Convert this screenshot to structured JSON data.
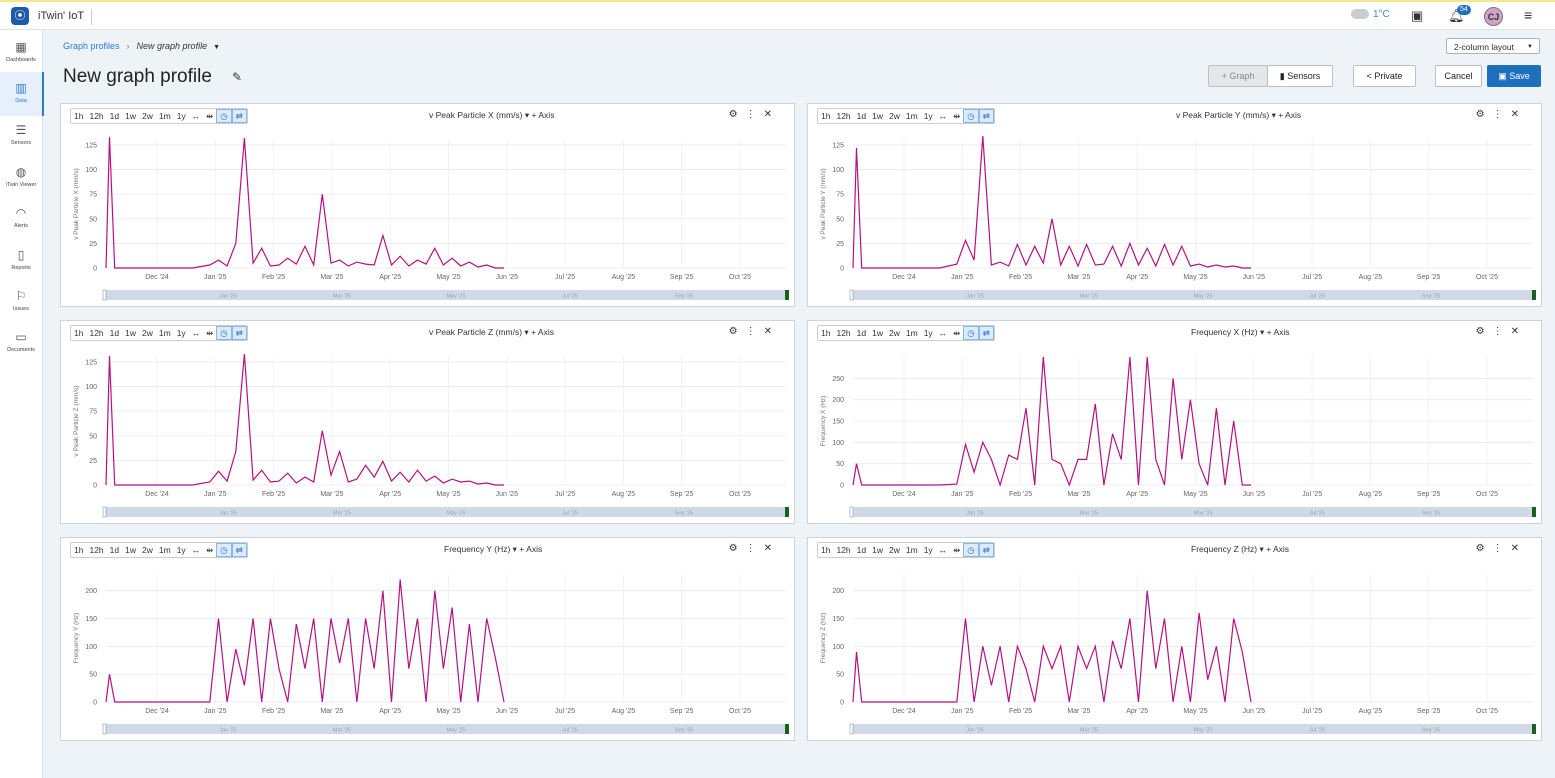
{
  "app": {
    "name": "iTwin' IoT",
    "weather": "1°C",
    "notifications": "54",
    "user_initials": "CJ"
  },
  "sidebar": {
    "items": [
      {
        "label": "Dashboards",
        "icon": "dashboard-icon",
        "active": false
      },
      {
        "label": "Data",
        "icon": "data-chart-icon",
        "active": true
      },
      {
        "label": "Sensors",
        "icon": "sliders-icon",
        "active": false
      },
      {
        "label": "iTwin Viewer",
        "icon": "globe-icon",
        "active": false
      },
      {
        "label": "Alerts",
        "icon": "bell-icon",
        "active": false
      },
      {
        "label": "Reports",
        "icon": "report-icon",
        "active": false
      },
      {
        "label": "Issues",
        "icon": "flag-icon",
        "active": false
      },
      {
        "label": "Documents",
        "icon": "folder-icon",
        "active": false
      }
    ]
  },
  "breadcrumb": {
    "parent": "Graph profiles",
    "current": "New graph profile"
  },
  "page": {
    "title": "New graph profile"
  },
  "layout_select": "2-column layout",
  "toolbar": {
    "graph": "Graph",
    "sensors": "Sensors",
    "private": "Private",
    "cancel": "Cancel",
    "save": "Save"
  },
  "time_buttons": [
    "1h",
    "12h",
    "1d",
    "1w",
    "2w",
    "1m",
    "1y",
    "↔",
    "⇹"
  ],
  "add_axis": "+ Axis",
  "accent_color": "#b5127f",
  "x_axis": {
    "ticks": [
      "Dec '24",
      "Jan '25",
      "Feb '25",
      "Mar '25",
      "Apr '25",
      "May '25",
      "Jun '25",
      "Jul '25",
      "Aug '25",
      "Sep '25",
      "Oct '25"
    ]
  },
  "navigator": {
    "ticks": [
      "Jan '25",
      "Mar '25",
      "May '25",
      "Jul '25",
      "Sep '25"
    ]
  },
  "chart_data": [
    {
      "type": "line",
      "title": "v Peak Particle X (mm/s)",
      "ylabel": "v Peak Particle X (mm/s)",
      "ylim": [
        0,
        130
      ],
      "yticks": [
        0,
        25,
        50,
        75,
        100,
        125
      ],
      "x": [
        0,
        0.2,
        0.5,
        1,
        3,
        5,
        6,
        6.5,
        7,
        7.5,
        8,
        8.5,
        9,
        9.5,
        10,
        10.5,
        11,
        11.5,
        12,
        12.5,
        13,
        13.5,
        14,
        14.5,
        15,
        15.5,
        16,
        16.5,
        17,
        17.5,
        18,
        18.5,
        19,
        19.5,
        20,
        20.5,
        21,
        21.5,
        22,
        22.5,
        23
      ],
      "values": [
        0,
        133,
        0,
        0,
        0,
        0,
        3,
        8,
        2,
        25,
        132,
        5,
        20,
        2,
        3,
        10,
        4,
        22,
        3,
        75,
        5,
        8,
        2,
        6,
        4,
        3,
        33,
        3,
        12,
        2,
        8,
        4,
        20,
        3,
        10,
        2,
        6,
        1,
        3,
        0,
        0
      ]
    },
    {
      "type": "line",
      "title": "v Peak Particle Y (mm/s)",
      "ylabel": "v Peak Particle Y (mm/s)",
      "ylim": [
        0,
        130
      ],
      "yticks": [
        0,
        25,
        50,
        75,
        100,
        125
      ],
      "x": [
        0,
        0.2,
        0.5,
        1,
        3,
        5,
        6,
        6.5,
        7,
        7.5,
        8,
        8.5,
        9,
        9.5,
        10,
        10.5,
        11,
        11.5,
        12,
        12.5,
        13,
        13.5,
        14,
        14.5,
        15,
        15.5,
        16,
        16.5,
        17,
        17.5,
        18,
        18.5,
        19,
        19.5,
        20,
        20.5,
        21,
        21.5,
        22,
        22.5,
        23
      ],
      "values": [
        0,
        122,
        0,
        0,
        0,
        0,
        4,
        28,
        8,
        134,
        3,
        6,
        2,
        24,
        3,
        22,
        5,
        50,
        3,
        22,
        2,
        24,
        3,
        4,
        22,
        2,
        25,
        3,
        20,
        2,
        24,
        3,
        22,
        2,
        4,
        1,
        3,
        1,
        2,
        0,
        0
      ]
    },
    {
      "type": "line",
      "title": "v Peak Particle Z (mm/s)",
      "ylabel": "v Peak Particle Z (mm/s)",
      "ylim": [
        0,
        130
      ],
      "yticks": [
        0,
        25,
        50,
        75,
        100,
        125
      ],
      "x": [
        0,
        0.2,
        0.5,
        1,
        3,
        5,
        6,
        6.5,
        7,
        7.5,
        8,
        8.5,
        9,
        9.5,
        10,
        10.5,
        11,
        11.5,
        12,
        12.5,
        13,
        13.5,
        14,
        14.5,
        15,
        15.5,
        16,
        16.5,
        17,
        17.5,
        18,
        18.5,
        19,
        19.5,
        20,
        20.5,
        21,
        21.5,
        22,
        22.5,
        23
      ],
      "values": [
        0,
        131,
        0,
        0,
        0,
        0,
        3,
        14,
        4,
        34,
        133,
        5,
        15,
        3,
        4,
        12,
        2,
        8,
        3,
        55,
        10,
        34,
        3,
        6,
        20,
        8,
        24,
        4,
        13,
        3,
        15,
        4,
        9,
        2,
        6,
        3,
        4,
        1,
        2,
        0,
        0
      ]
    },
    {
      "type": "line",
      "title": "Frequency X (Hz)",
      "ylabel": "Frequency X (Hz)",
      "ylim": [
        0,
        300
      ],
      "yticks": [
        0,
        50,
        100,
        150,
        200,
        250
      ],
      "x": [
        0,
        0.2,
        0.5,
        1,
        3,
        5,
        6,
        6.5,
        7,
        7.5,
        8,
        8.5,
        9,
        9.5,
        10,
        10.5,
        11,
        11.5,
        12,
        12.5,
        13,
        13.5,
        14,
        14.5,
        15,
        15.5,
        16,
        16.5,
        17,
        17.5,
        18,
        18.5,
        19,
        19.5,
        20,
        20.5,
        21,
        21.5,
        22,
        22.5,
        23
      ],
      "values": [
        0,
        50,
        0,
        0,
        0,
        0,
        2,
        95,
        30,
        100,
        60,
        0,
        70,
        60,
        180,
        0,
        300,
        60,
        50,
        0,
        60,
        60,
        190,
        0,
        120,
        60,
        300,
        0,
        300,
        60,
        0,
        250,
        60,
        200,
        50,
        0,
        180,
        0,
        150,
        0,
        0
      ]
    },
    {
      "type": "line",
      "title": "Frequency Y (Hz)",
      "ylabel": "Frequency Y (Hz)",
      "ylim": [
        0,
        230
      ],
      "yticks": [
        0,
        50,
        100,
        150,
        200
      ],
      "x": [
        0,
        0.2,
        0.5,
        1,
        3,
        5,
        6,
        6.5,
        7,
        7.5,
        8,
        8.5,
        9,
        9.5,
        10,
        10.5,
        11,
        11.5,
        12,
        12.5,
        13,
        13.5,
        14,
        14.5,
        15,
        15.5,
        16,
        16.5,
        17,
        17.5,
        18,
        18.5,
        19,
        19.5,
        20,
        20.5,
        21,
        21.5,
        22,
        22.5,
        23
      ],
      "values": [
        0,
        50,
        0,
        0,
        0,
        0,
        0,
        150,
        0,
        95,
        30,
        150,
        0,
        150,
        60,
        0,
        140,
        60,
        150,
        0,
        150,
        70,
        150,
        0,
        150,
        60,
        200,
        0,
        220,
        60,
        150,
        0,
        200,
        60,
        170,
        0,
        140,
        0,
        150,
        80,
        0
      ]
    },
    {
      "type": "line",
      "title": "Frequency Z (Hz)",
      "ylabel": "Frequency Z (Hz)",
      "ylim": [
        0,
        230
      ],
      "yticks": [
        0,
        50,
        100,
        150,
        200
      ],
      "x": [
        0,
        0.2,
        0.5,
        1,
        3,
        5,
        6,
        6.5,
        7,
        7.5,
        8,
        8.5,
        9,
        9.5,
        10,
        10.5,
        11,
        11.5,
        12,
        12.5,
        13,
        13.5,
        14,
        14.5,
        15,
        15.5,
        16,
        16.5,
        17,
        17.5,
        18,
        18.5,
        19,
        19.5,
        20,
        20.5,
        21,
        21.5,
        22,
        22.5,
        23
      ],
      "values": [
        0,
        90,
        0,
        0,
        0,
        0,
        0,
        150,
        0,
        100,
        30,
        100,
        0,
        100,
        60,
        0,
        100,
        60,
        100,
        0,
        100,
        60,
        100,
        0,
        110,
        60,
        150,
        0,
        200,
        60,
        150,
        0,
        100,
        0,
        160,
        40,
        100,
        0,
        150,
        90,
        0
      ]
    }
  ]
}
